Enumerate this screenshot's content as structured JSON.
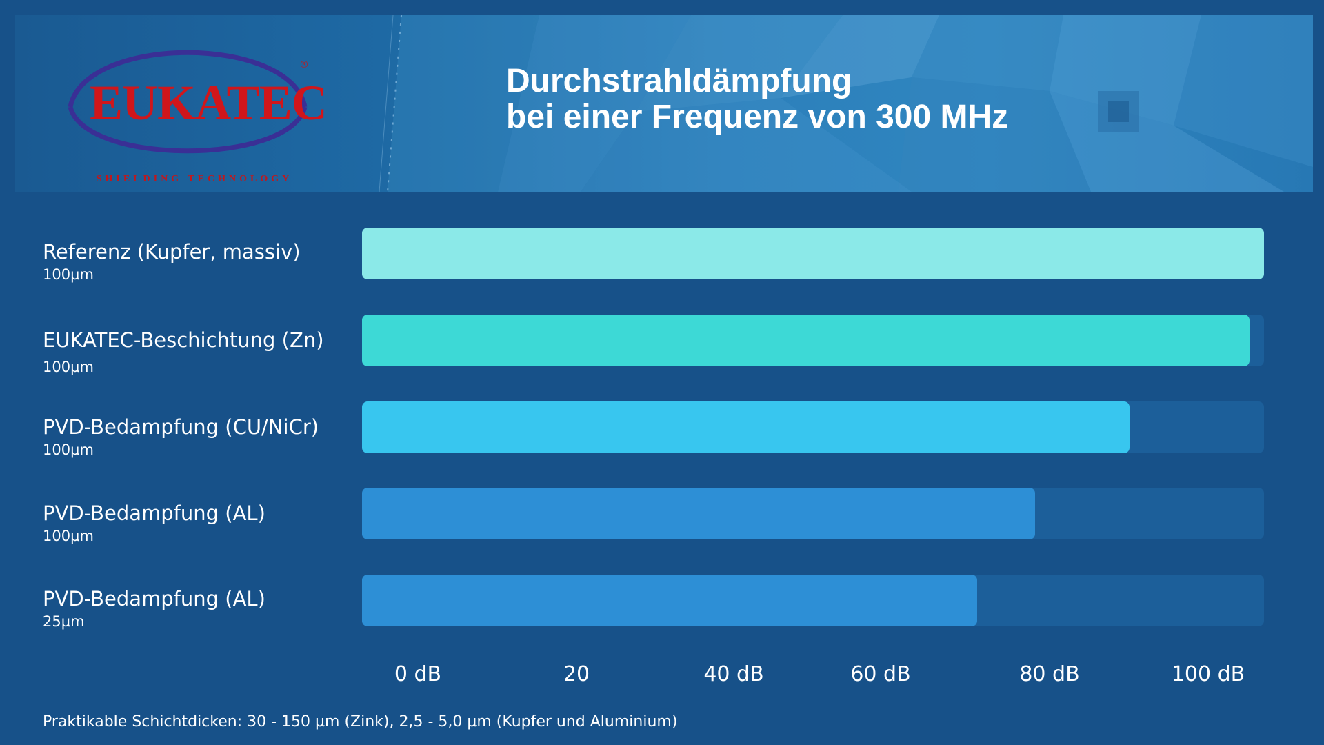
{
  "header": {
    "title_line1": "Durchstrahldämpfung",
    "title_line2": "bei einer Frequenz von 300 MHz",
    "logo_text": "EUKATEC",
    "logo_tagline": "SHIELDING TECHNOLOGY",
    "logo_registered": "®"
  },
  "chart_data": {
    "type": "bar",
    "orientation": "horizontal",
    "title": "Durchstrahldämpfung bei einer Frequenz von 300 MHz",
    "categories": [
      "Referenz (Kupfer, massiv)",
      "EUKATEC-Beschichtung (Zn)",
      "PVD-Bedampfung (CU/NiCr)",
      "PVD-Bedampfung (AL)",
      "PVD-Bedampfung (AL)"
    ],
    "sublabels": [
      "100µm",
      "100µm",
      "100µm",
      "100µm",
      "25µm"
    ],
    "values": [
      100,
      98.4,
      85.1,
      74.6,
      68.2
    ],
    "colors": [
      "#8be9e8",
      "#3dd9d6",
      "#38c6ef",
      "#2d8fd6",
      "#2d8fd6"
    ],
    "x_ticks": [
      "0 dB",
      "20",
      "40 dB",
      "60 dB",
      "80 dB",
      "100 dB"
    ],
    "xlim": [
      0,
      100
    ],
    "unit": "dB",
    "grid": false,
    "legend": "none"
  },
  "footnote": "Praktikable Schichtdicken: 30 - 150 µm (Zink), 2,5 - 5,0 µm (Kupfer und Aluminium)"
}
